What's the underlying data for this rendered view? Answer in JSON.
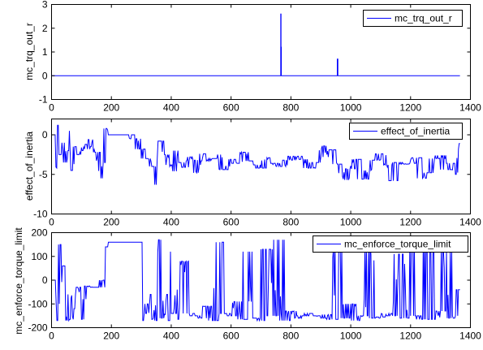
{
  "chart_data": [
    {
      "type": "line",
      "ylabel": "mc_trq_out_r",
      "xlim": [
        0,
        1400
      ],
      "ylim": [
        -1,
        3
      ],
      "xticks": [
        0,
        200,
        400,
        600,
        800,
        1000,
        1200,
        1400
      ],
      "yticks": [
        -1,
        0,
        1,
        2,
        3
      ],
      "legend_position": "top-right",
      "series": [
        {
          "name": "mc_trq_out_r",
          "color": "#0000ff",
          "x": [
            0,
            766,
            766,
            767,
            767,
            768,
            768,
            955,
            955,
            957,
            957,
            1365
          ],
          "y": [
            0,
            0,
            2.6,
            2.6,
            1.2,
            1.2,
            0,
            0,
            0.7,
            0.7,
            0,
            0
          ]
        }
      ]
    },
    {
      "type": "line",
      "ylabel": "effect_of_inertia",
      "xlim": [
        0,
        1400
      ],
      "ylim": [
        -10,
        2
      ],
      "xticks": [
        0,
        200,
        400,
        600,
        800,
        1000,
        1200,
        1400
      ],
      "yticks": [
        -10,
        -5,
        0
      ],
      "legend_position": "top-right",
      "series": [
        {
          "name": "effect_of_inertia",
          "color": "#0000ff",
          "noise_seed": 7,
          "x": [
            0,
            12,
            20,
            25,
            32,
            40,
            48,
            55,
            62,
            70,
            80,
            90,
            100,
            110,
            120,
            130,
            140,
            150,
            165,
            175,
            182,
            195,
            210,
            225,
            240,
            260,
            280,
            300,
            320,
            340,
            350,
            356,
            365,
            380,
            395,
            405,
            420,
            430,
            445,
            460,
            475,
            490,
            500,
            520,
            540,
            560,
            575,
            600,
            620,
            645,
            660,
            680,
            700,
            720,
            740,
            770,
            790,
            820,
            840,
            860,
            885,
            900,
            920,
            940,
            960,
            980,
            1000,
            1020,
            1040,
            1065,
            1080,
            1100,
            1120,
            1140,
            1160,
            1180,
            1200,
            1220,
            1240,
            1260,
            1280,
            1300,
            1320,
            1340,
            1350,
            1360,
            1365
          ],
          "y": [
            0,
            0,
            -4.2,
            1.2,
            -2.5,
            -1.0,
            -3.5,
            0.5,
            -2.0,
            -4.5,
            -1.5,
            -2.5,
            -2.0,
            -1.2,
            -1.8,
            -0.6,
            -1.5,
            -2.2,
            -5.5,
            -3.5,
            0.8,
            0,
            0,
            0,
            0,
            0,
            -0.5,
            -1.8,
            -3.0,
            -4.0,
            -6.3,
            -3.2,
            -0.8,
            -2.5,
            -3.8,
            -4.6,
            -2.0,
            -3.5,
            -4.1,
            -2.8,
            -3.2,
            -4.8,
            -2.4,
            -3.3,
            -3.0,
            -2.5,
            -4.4,
            -3.1,
            -3.6,
            -2.2,
            -3.3,
            -3.8,
            -4.2,
            -2.9,
            -3.6,
            -4.0,
            -3.2,
            -2.7,
            -3.1,
            -4.2,
            -3.5,
            -1.4,
            -2.8,
            -1.9,
            -3.7,
            -5.7,
            -4.3,
            -3.1,
            -5.6,
            -4.5,
            -3.2,
            -2.4,
            -3.8,
            -5.8,
            -3.5,
            -3.7,
            -3.6,
            -2.9,
            -5.5,
            -4.8,
            -3.0,
            -2.6,
            -4.4,
            -3.6,
            -5.0,
            -1.8,
            -1.1
          ]
        }
      ]
    },
    {
      "type": "line",
      "ylabel": "mc_enforce_torque_limit",
      "xlim": [
        0,
        1400
      ],
      "ylim": [
        -200,
        200
      ],
      "xticks": [
        0,
        200,
        400,
        600,
        800,
        1000,
        1200,
        1400
      ],
      "yticks": [
        -200,
        -100,
        0,
        100,
        200
      ],
      "legend_position": "top-right",
      "series": [
        {
          "name": "mc_enforce_torque_limit",
          "color": "#0000ff",
          "noise_seed": 13,
          "x": [
            0,
            10,
            18,
            26,
            34,
            42,
            50,
            60,
            70,
            80,
            90,
            100,
            110,
            120,
            140,
            160,
            170,
            178,
            185,
            190,
            195,
            300,
            305,
            312,
            320,
            330,
            340,
            350,
            360,
            370,
            380,
            390,
            400,
            410,
            420,
            430,
            440,
            460,
            480,
            500,
            520,
            540,
            560,
            580,
            600,
            620,
            640,
            660,
            680,
            700,
            720,
            740,
            760,
            780,
            800,
            820,
            840,
            860,
            880,
            900,
            920,
            940,
            960,
            980,
            1000,
            1020,
            1040,
            1060,
            1080,
            1100,
            1120,
            1140,
            1160,
            1180,
            1200,
            1220,
            1240,
            1260,
            1280,
            1300,
            1320,
            1340,
            1350,
            1360,
            1365
          ],
          "y": [
            0,
            0,
            -170,
            150,
            -100,
            60,
            -170,
            -60,
            -165,
            -120,
            -30,
            -165,
            -80,
            -25,
            -30,
            -30,
            0,
            -30,
            140,
            160,
            160,
            160,
            -170,
            -140,
            -100,
            -165,
            -60,
            -170,
            170,
            -160,
            -60,
            -170,
            120,
            -140,
            -40,
            -165,
            80,
            -140,
            -150,
            -160,
            -110,
            -170,
            160,
            -140,
            -150,
            -90,
            -165,
            120,
            -160,
            -170,
            130,
            -150,
            170,
            -170,
            -130,
            -160,
            -150,
            -140,
            -150,
            -160,
            -145,
            -165,
            140,
            -160,
            -100,
            -170,
            -150,
            160,
            -160,
            -155,
            -140,
            -150,
            110,
            -160,
            160,
            -150,
            -165,
            170,
            -165,
            -130,
            120,
            -160,
            -150,
            -40,
            -40
          ]
        }
      ]
    }
  ]
}
